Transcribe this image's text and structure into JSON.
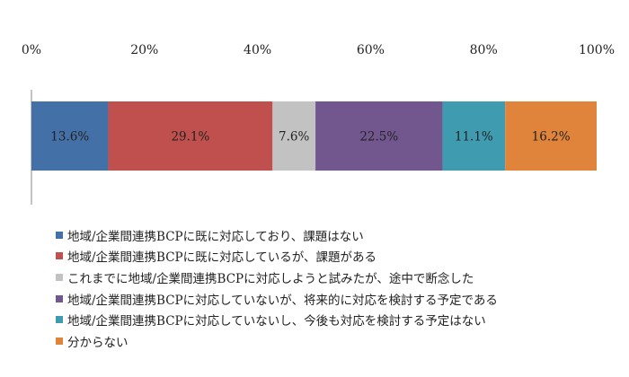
{
  "chart_data": {
    "type": "bar",
    "orientation": "horizontal-stacked-100",
    "xlim": [
      0,
      100
    ],
    "x_ticks": [
      "0%",
      "20%",
      "40%",
      "60%",
      "80%",
      "100%"
    ],
    "x_tick_values": [
      0,
      20,
      40,
      60,
      80,
      100
    ],
    "grid": false,
    "legend_position": "bottom",
    "series": [
      {
        "name": "地域/企業間連携BCPに既に対応しており、課題はない",
        "value": 13.6,
        "label": "13.6%",
        "color": "#4470a8"
      },
      {
        "name": "地域/企業間連携BCPに既に対応しているが、課題がある",
        "value": 29.1,
        "label": "29.1%",
        "color": "#c0504d"
      },
      {
        "name": "これまでに地域/企業間連携BCPに対応しようと試みたが、途中で断念した",
        "value": 7.6,
        "label": "7.6%",
        "color": "#c2c2c2"
      },
      {
        "name": "地域/企業間連携BCPに対応していないが、将来的に対応を検討する予定である",
        "value": 22.5,
        "label": "22.5%",
        "color": "#72578f"
      },
      {
        "name": "地域/企業間連携BCPに対応していないし、今後も対応を検討する予定はない",
        "value": 11.1,
        "label": "11.1%",
        "color": "#3f9bb0"
      },
      {
        "name": "分からない",
        "value": 16.2,
        "label": "16.2%",
        "color": "#e0843c"
      }
    ]
  }
}
